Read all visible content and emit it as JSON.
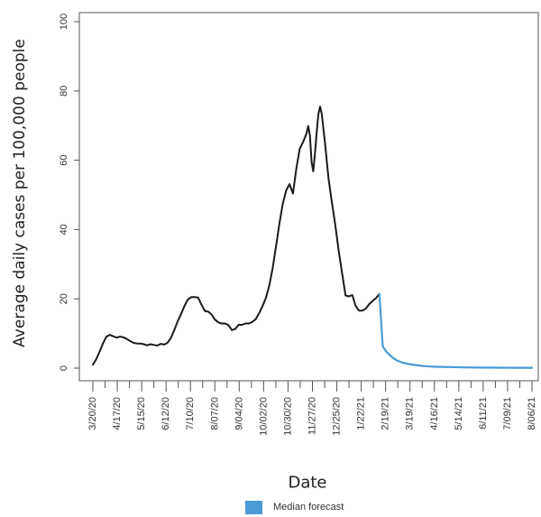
{
  "chart_data": {
    "type": "line",
    "title": "",
    "xlabel": "Date",
    "ylabel": "Average daily cases per 100,000 people",
    "ylim": [
      0,
      100
    ],
    "yticks": [
      0,
      20,
      40,
      60,
      80,
      100
    ],
    "xlim": [
      "3/20/20",
      "8/20/21"
    ],
    "xtick_labels": [
      "3/20/20",
      "4/17/20",
      "5/15/20",
      "6/12/20",
      "7/10/20",
      "8/07/20",
      "9/04/20",
      "10/02/20",
      "10/30/20",
      "11/27/20",
      "12/25/20",
      "1/22/21",
      "2/19/21",
      "3/19/21",
      "4/16/21",
      "5/14/21",
      "6/11/21",
      "7/09/21",
      "8/06/21"
    ],
    "grid": false,
    "legend_position": "bottom-center",
    "series": [
      {
        "name": "",
        "color": "#1a1a1a",
        "points": [
          [
            "3/20/20",
            1
          ],
          [
            "3/24/20",
            2.6
          ],
          [
            "3/28/20",
            4.8
          ],
          [
            "4/01/20",
            7.2
          ],
          [
            "4/05/20",
            9.1
          ],
          [
            "4/09/20",
            9.6
          ],
          [
            "4/13/20",
            9.2
          ],
          [
            "4/17/20",
            8.8
          ],
          [
            "4/21/20",
            9.1
          ],
          [
            "4/25/20",
            8.9
          ],
          [
            "4/29/20",
            8.4
          ],
          [
            "5/03/20",
            7.8
          ],
          [
            "5/07/20",
            7.3
          ],
          [
            "5/11/20",
            7.1
          ],
          [
            "5/15/20",
            7.1
          ],
          [
            "5/19/20",
            6.9
          ],
          [
            "5/23/20",
            6.6
          ],
          [
            "5/27/20",
            6.9
          ],
          [
            "5/31/20",
            6.7
          ],
          [
            "6/04/20",
            6.5
          ],
          [
            "6/08/20",
            7
          ],
          [
            "6/12/20",
            6.8
          ],
          [
            "6/16/20",
            7.3
          ],
          [
            "6/20/20",
            8.7
          ],
          [
            "6/24/20",
            11
          ],
          [
            "6/28/20",
            13.5
          ],
          [
            "7/02/20",
            15.6
          ],
          [
            "7/06/20",
            17.9
          ],
          [
            "7/10/20",
            19.8
          ],
          [
            "7/14/20",
            20.5
          ],
          [
            "7/18/20",
            20.5
          ],
          [
            "7/22/20",
            20.4
          ],
          [
            "7/26/20",
            18.4
          ],
          [
            "7/30/20",
            16.5
          ],
          [
            "8/03/20",
            16.3
          ],
          [
            "8/07/20",
            15.5
          ],
          [
            "8/11/20",
            14
          ],
          [
            "8/15/20",
            13.2
          ],
          [
            "8/19/20",
            12.9
          ],
          [
            "8/23/20",
            12.9
          ],
          [
            "8/27/20",
            12.4
          ],
          [
            "8/31/20",
            11
          ],
          [
            "9/04/20",
            11.3
          ],
          [
            "9/08/20",
            12.5
          ],
          [
            "9/12/20",
            12.5
          ],
          [
            "9/16/20",
            12.9
          ],
          [
            "9/20/20",
            12.9
          ],
          [
            "9/24/20",
            13.3
          ],
          [
            "9/28/20",
            14.1
          ],
          [
            "10/02/20",
            15.8
          ],
          [
            "10/06/20",
            17.8
          ],
          [
            "10/10/20",
            20.2
          ],
          [
            "10/14/20",
            23.8
          ],
          [
            "10/18/20",
            28.7
          ],
          [
            "10/22/20",
            35.1
          ],
          [
            "10/26/20",
            41.6
          ],
          [
            "10/30/20",
            47.4
          ],
          [
            "11/03/20",
            51.3
          ],
          [
            "11/07/20",
            53.1
          ],
          [
            "11/11/20",
            50.4
          ],
          [
            "11/15/20",
            57.5
          ],
          [
            "11/19/20",
            63.3
          ],
          [
            "11/23/20",
            65.3
          ],
          [
            "11/27/20",
            67.7
          ],
          [
            "11/29/20",
            69.9
          ],
          [
            "12/01/20",
            67.2
          ],
          [
            "12/03/20",
            59.4
          ],
          [
            "12/05/20",
            56.8
          ],
          [
            "12/07/20",
            61.9
          ],
          [
            "12/09/20",
            68
          ],
          [
            "12/11/20",
            73.3
          ],
          [
            "12/13/20",
            75.5
          ],
          [
            "12/15/20",
            73.5
          ],
          [
            "12/19/20",
            64.6
          ],
          [
            "12/23/20",
            54.6
          ],
          [
            "12/27/20",
            47.8
          ],
          [
            "12/31/20",
            41.2
          ],
          [
            "1/04/21",
            33.9
          ],
          [
            "1/08/21",
            27.4
          ],
          [
            "1/12/21",
            21
          ],
          [
            "1/16/21",
            20.7
          ],
          [
            "1/20/21",
            21.1
          ],
          [
            "1/24/21",
            18
          ],
          [
            "1/28/21",
            16.6
          ],
          [
            "2/01/21",
            16.6
          ],
          [
            "2/05/21",
            17.2
          ],
          [
            "2/09/21",
            18.5
          ],
          [
            "2/13/21",
            19.4
          ],
          [
            "2/17/21",
            20.2
          ],
          [
            "2/21/21",
            21.4
          ]
        ]
      },
      {
        "name": "Median forecast",
        "color": "#4a9bd6",
        "points": [
          [
            "2/21/21",
            21.4
          ],
          [
            "2/25/21",
            6.3
          ],
          [
            "3/01/21",
            4.8
          ],
          [
            "3/05/21",
            3.8
          ],
          [
            "3/09/21",
            3.0
          ],
          [
            "3/13/21",
            2.3
          ],
          [
            "3/19/21",
            1.7
          ],
          [
            "3/27/21",
            1.2
          ],
          [
            "4/04/21",
            0.9
          ],
          [
            "4/14/21",
            0.6
          ],
          [
            "4/28/21",
            0.4
          ],
          [
            "5/14/21",
            0.3
          ],
          [
            "6/01/21",
            0.2
          ],
          [
            "6/20/21",
            0.15
          ],
          [
            "7/10/21",
            0.12
          ],
          [
            "7/31/21",
            0.1
          ],
          [
            "8/20/21",
            0.1
          ]
        ]
      }
    ]
  },
  "legend": {
    "label": "Median forecast",
    "color": "#4a9bd6"
  }
}
